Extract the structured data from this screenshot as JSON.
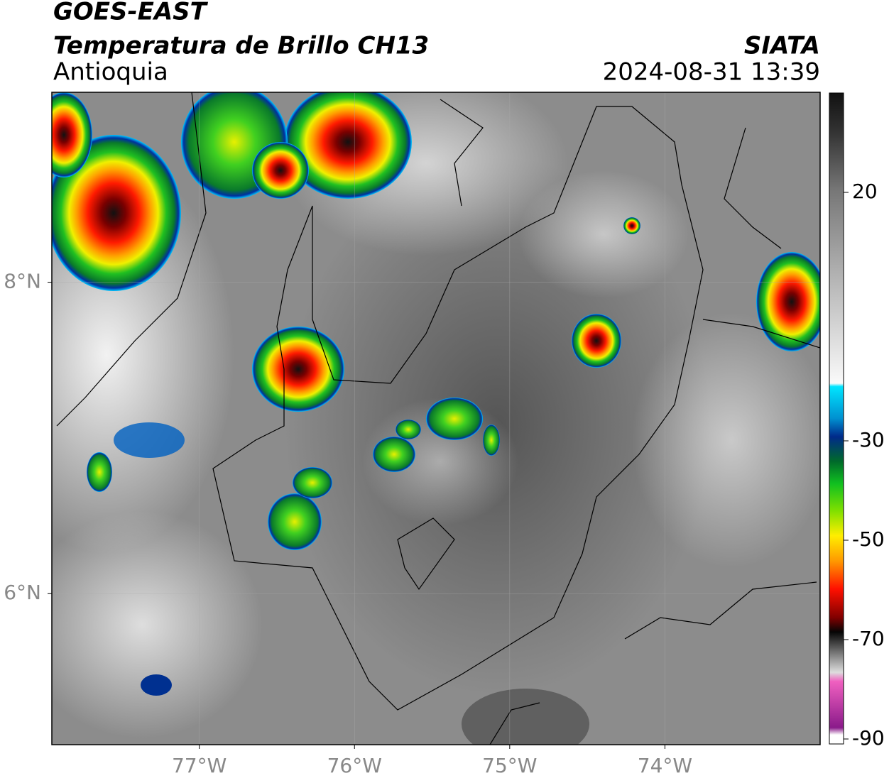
{
  "header": {
    "title": "GOES-EAST",
    "subtitle": "Temperatura de Brillo CH13",
    "region": "Antioquia",
    "source": "SIATA",
    "datetime": "2024-08-31 13:39"
  },
  "map": {
    "xlim": [
      -77.95,
      -73.0
    ],
    "ylim": [
      5.03,
      9.22
    ],
    "grid": true,
    "xticks": [
      {
        "value": -77,
        "label": "77°W"
      },
      {
        "value": -76,
        "label": "76°W"
      },
      {
        "value": -75,
        "label": "75°W"
      },
      {
        "value": -74,
        "label": "74°W"
      }
    ],
    "yticks": [
      {
        "value": 8,
        "label": "8°N"
      },
      {
        "value": 6,
        "label": "6°N"
      }
    ]
  },
  "colorbar": {
    "lim": [
      -91,
      40
    ],
    "ticks": [
      20,
      -30,
      -50,
      -70,
      -90
    ]
  }
}
